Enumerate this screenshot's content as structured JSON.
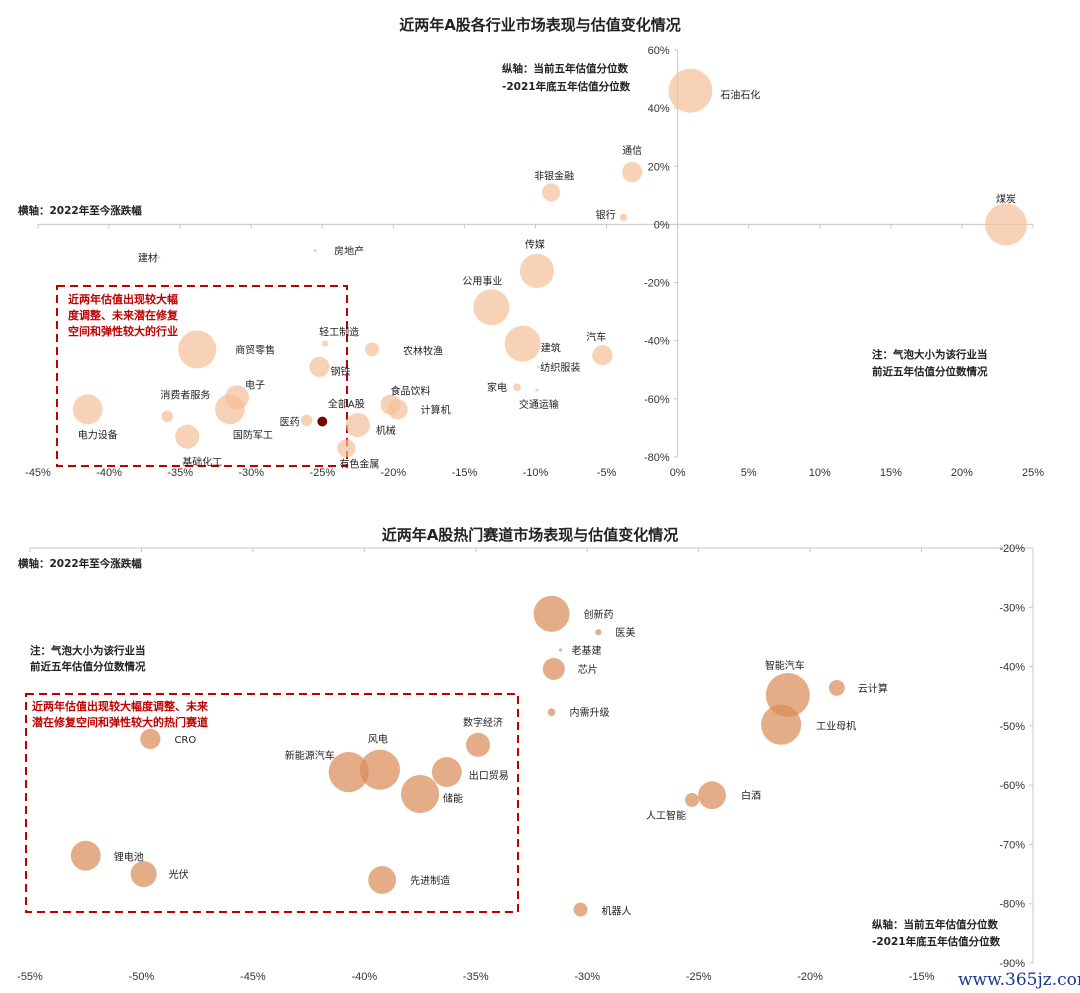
{
  "chart_data": [
    {
      "type": "scatter",
      "subtype": "bubble",
      "title": "近两年A股各行业市场表现与估值变化情况",
      "xlabel": "横轴：2022年至今涨跌幅",
      "ylabel_lines": [
        "纵轴：当前五年估值分位数",
        "-2021年底五年估值分位数"
      ],
      "xlim": [
        -45,
        25
      ],
      "ylim": [
        -80,
        60
      ],
      "x_ticks": [
        "-45%",
        "-40%",
        "-35%",
        "-30%",
        "-25%",
        "-20%",
        "-15%",
        "-10%",
        "-5%",
        "0%",
        "5%",
        "10%",
        "15%",
        "20%",
        "25%"
      ],
      "y_ticks": [
        "60%",
        "40%",
        "20%",
        "0%",
        "-20%",
        "-40%",
        "-60%",
        "-80%"
      ],
      "note_lines": [
        "注：气泡大小为该行业当",
        "前近五年估值分位数情况"
      ],
      "highlight_box_lines": [
        "近两年估值出现较大幅",
        "度调整、未来潜在修复",
        "空间和弹性较大的行业"
      ],
      "bubble_color": "#f4bf99",
      "highlight_point_color": "#7a0000",
      "box_color": "#c00000",
      "points": [
        {
          "name": "石油石化",
          "x": 0.9,
          "y": 46,
          "size": 100
        },
        {
          "name": "通信",
          "x": -3.2,
          "y": 18,
          "size": 21
        },
        {
          "name": "非银金融",
          "x": -8.9,
          "y": 11,
          "size": 17
        },
        {
          "name": "银行",
          "x": -3.8,
          "y": 2.4,
          "size": 3
        },
        {
          "name": "煤炭",
          "x": 23.1,
          "y": 0,
          "size": 91
        },
        {
          "name": "传媒",
          "x": -9.9,
          "y": -16,
          "size": 60
        },
        {
          "name": "公用事业",
          "x": -13.1,
          "y": -28.5,
          "size": 67
        },
        {
          "name": "建筑",
          "x": -10.9,
          "y": -41,
          "size": 67
        },
        {
          "name": "汽车",
          "x": -5.3,
          "y": -45,
          "size": 21
        },
        {
          "name": "家电",
          "x": -11.3,
          "y": -56,
          "size": 3
        },
        {
          "name": "交通运输",
          "x": -9.9,
          "y": -57,
          "size": 0.5
        },
        {
          "name": "纺织服装",
          "x": -9.8,
          "y": -49,
          "size": 0.5
        },
        {
          "name": "建材",
          "x": -36.5,
          "y": -11.4,
          "size": 0.5
        },
        {
          "name": "房地产",
          "x": -25.5,
          "y": -9,
          "size": 0.5
        },
        {
          "name": "轻工制造",
          "x": -24.8,
          "y": -41,
          "size": 2
        },
        {
          "name": "商贸零售",
          "x": -33.8,
          "y": -43,
          "size": 75
        },
        {
          "name": "农林牧渔",
          "x": -21.5,
          "y": -43,
          "size": 10
        },
        {
          "name": "钢铁",
          "x": -25.2,
          "y": -49,
          "size": 21
        },
        {
          "name": "电子",
          "x": -31,
          "y": -59.5,
          "size": 30
        },
        {
          "name": "消费者服务",
          "x": -35.9,
          "y": -66,
          "size": 7
        },
        {
          "name": "电力设备",
          "x": -41.5,
          "y": -63.6,
          "size": 46
        },
        {
          "name": "国防军工",
          "x": -31.5,
          "y": -63.6,
          "size": 46
        },
        {
          "name": "医药",
          "x": -26.1,
          "y": -67.4,
          "size": 7
        },
        {
          "name": "全部A股",
          "x": -25,
          "y": -67.8,
          "size": 5,
          "highlight": true
        },
        {
          "name": "食品饮料",
          "x": -20.2,
          "y": -62,
          "size": 21
        },
        {
          "name": "计算机",
          "x": -19.7,
          "y": -63.6,
          "size": 21
        },
        {
          "name": "机械",
          "x": -22.5,
          "y": -69,
          "size": 30
        },
        {
          "name": "基础化工",
          "x": -34.5,
          "y": -73,
          "size": 30
        },
        {
          "name": "有色金属",
          "x": -23.3,
          "y": -77,
          "size": 17
        }
      ]
    },
    {
      "type": "scatter",
      "subtype": "bubble",
      "title": "近两年A股热门赛道市场表现与估值变化情况",
      "xlabel": "横轴：2022年至今涨跌幅",
      "ylabel_lines": [
        "纵轴：当前五年估值分位数",
        "-2021年底五年估值分位数"
      ],
      "xlim": [
        -55,
        -10
      ],
      "ylim": [
        -90,
        -20
      ],
      "x_ticks": [
        "-55%",
        "-50%",
        "-45%",
        "-40%",
        "-35%",
        "-30%",
        "-25%",
        "-20%",
        "-15%"
      ],
      "y_ticks": [
        "-20%",
        "-30%",
        "-40%",
        "-50%",
        "-60%",
        "-70%",
        "-80%",
        "-90%"
      ],
      "note_lines": [
        "注：气泡大小为该行业当",
        "前近五年估值分位数情况"
      ],
      "highlight_box_lines": [
        "近两年估值出现较大幅度调整、未来",
        "潜在修复空间和弹性较大的热门赛道"
      ],
      "bubble_color": "#d98a55",
      "box_color": "#c00000",
      "points": [
        {
          "name": "CRO",
          "x": -49.6,
          "y": -52.2,
          "size": 21
        },
        {
          "name": "新能源汽车",
          "x": -40.7,
          "y": -57.8,
          "size": 83
        },
        {
          "name": "风电",
          "x": -39.3,
          "y": -57.4,
          "size": 83
        },
        {
          "name": "数字经济",
          "x": -34.9,
          "y": -53.2,
          "size": 30
        },
        {
          "name": "出口贸易",
          "x": -36.3,
          "y": -57.8,
          "size": 46
        },
        {
          "name": "储能",
          "x": -37.5,
          "y": -61.5,
          "size": 75
        },
        {
          "name": "锂电池",
          "x": -52.5,
          "y": -71.9,
          "size": 46
        },
        {
          "name": "光伏",
          "x": -49.9,
          "y": -75,
          "size": 35
        },
        {
          "name": "先进制造",
          "x": -39.2,
          "y": -76,
          "size": 40
        },
        {
          "name": "创新药",
          "x": -31.6,
          "y": -31.1,
          "size": 67
        },
        {
          "name": "医美",
          "x": -29.5,
          "y": -34.2,
          "size": 2
        },
        {
          "name": "老基建",
          "x": -31.2,
          "y": -37.2,
          "size": 0.5
        },
        {
          "name": "芯片",
          "x": -31.5,
          "y": -40.4,
          "size": 25
        },
        {
          "name": "内需升级",
          "x": -31.6,
          "y": -47.7,
          "size": 3
        },
        {
          "name": "智能汽车",
          "x": -21,
          "y": -44.8,
          "size": 100
        },
        {
          "name": "云计算",
          "x": -18.8,
          "y": -43.6,
          "size": 13
        },
        {
          "name": "工业母机",
          "x": -21.3,
          "y": -49.8,
          "size": 83
        },
        {
          "name": "白酒",
          "x": -24.4,
          "y": -61.7,
          "size": 40
        },
        {
          "name": "人工智能",
          "x": -25.3,
          "y": -62.5,
          "size": 10
        },
        {
          "name": "机器人",
          "x": -30.3,
          "y": -81,
          "size": 10
        }
      ]
    }
  ],
  "watermark": "www.365jz.com"
}
